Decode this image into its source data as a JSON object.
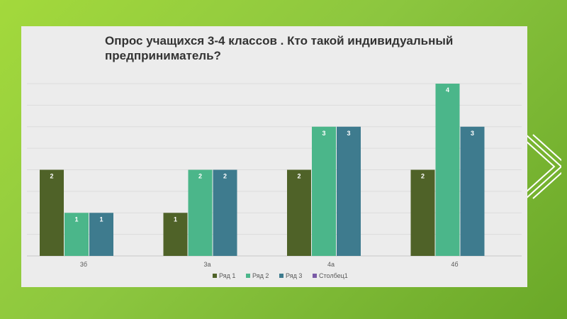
{
  "slide": {
    "accent_color": "#8cc63f"
  },
  "chart_data": {
    "type": "bar",
    "title": "Опрос учащихся 3-4 классов . Кто такой индивидуальный предприниматель?",
    "xlabel": "",
    "ylabel": "",
    "categories": [
      "3б",
      "3а",
      "4а",
      "4б"
    ],
    "ylim": [
      0,
      4
    ],
    "grid": true,
    "legend_position": "bottom",
    "series": [
      {
        "name": "Ряд 1",
        "color": "#4f6228",
        "values": [
          2,
          1,
          2,
          2
        ]
      },
      {
        "name": "Ряд 2",
        "color": "#4bb68a",
        "values": [
          1,
          2,
          3,
          4
        ]
      },
      {
        "name": "Ряд 3",
        "color": "#3e7b8e",
        "values": [
          1,
          2,
          3,
          3
        ]
      },
      {
        "name": "Столбец1",
        "color": "#7a5aa6",
        "values": [
          null,
          null,
          null,
          null
        ]
      }
    ]
  }
}
